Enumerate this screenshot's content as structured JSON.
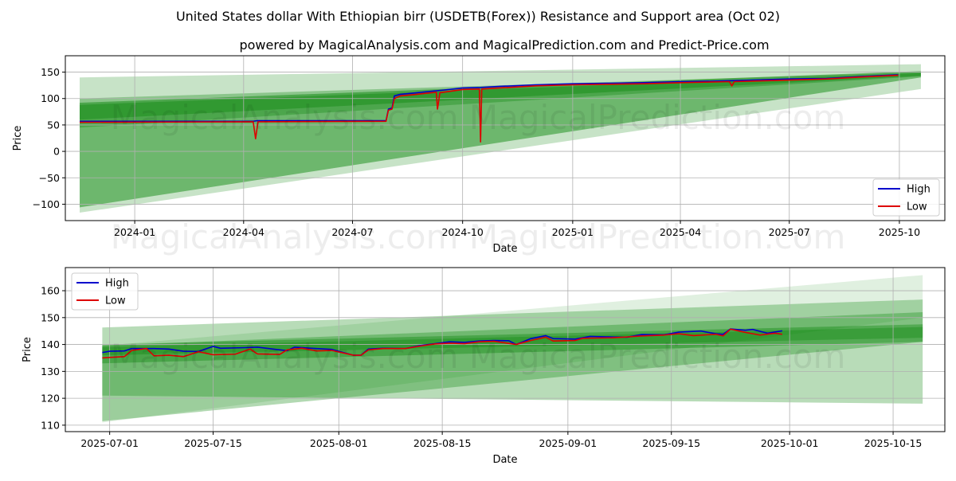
{
  "title": "United States dollar With Ethiopian birr (USDETB(Forex)) Resistance and Support area (Oct 02)",
  "subtitle": "powered by MagicalAnalysis.com and MagicalPrediction.com and Predict-Price.com",
  "watermark": "MagicalAnalysis.com    MagicalPrediction.com",
  "colors": {
    "high": "#0000cc",
    "low": "#dd0000",
    "band": "#008000"
  },
  "chart_data": [
    {
      "type": "line",
      "xlabel": "Date",
      "ylabel": "Price",
      "xlim": [
        "2023-11-04",
        "2025-11-08"
      ],
      "ylim": [
        -131,
        181
      ],
      "yticks": [
        -100,
        -50,
        0,
        50,
        100,
        150
      ],
      "xticks": [
        "2024-01",
        "2024-04",
        "2024-07",
        "2024-10",
        "2025-01",
        "2025-04",
        "2025-07",
        "2025-10"
      ],
      "grid": true,
      "legend": "bottom-right",
      "bands": [
        {
          "name": "light-band",
          "opacity": 0.22,
          "x": [
            "2023-11-16",
            "2025-10-19"
          ],
          "upper": [
            140,
            165
          ],
          "lower": [
            -116,
            118
          ]
        },
        {
          "name": "wide-support-band",
          "opacity": 0.45,
          "x": [
            "2023-11-16",
            "2025-10-19"
          ],
          "upper": [
            92,
            152
          ],
          "lower": [
            -106,
            140
          ]
        },
        {
          "name": "resistance-band",
          "opacity": 0.3,
          "x": [
            "2023-11-16",
            "2025-10-19"
          ],
          "upper": [
            100,
            150
          ],
          "lower": [
            45,
            142
          ]
        },
        {
          "name": "core-band",
          "opacity": 0.35,
          "x": [
            "2023-11-16",
            "2025-10-19"
          ],
          "upper": [
            88,
            148
          ],
          "lower": [
            60,
            143
          ]
        }
      ],
      "series": [
        {
          "name": "High",
          "points": [
            [
              "2023-11-16",
              57
            ],
            [
              "2024-04-09",
              57
            ],
            [
              "2024-04-12",
              58
            ],
            [
              "2024-07-29",
              58
            ],
            [
              "2024-07-31",
              80
            ],
            [
              "2024-08-03",
              82
            ],
            [
              "2024-08-05",
              105
            ],
            [
              "2024-08-10",
              108
            ],
            [
              "2024-08-20",
              110
            ],
            [
              "2024-09-01",
              113
            ],
            [
              "2024-09-15",
              116
            ],
            [
              "2024-10-01",
              120
            ],
            [
              "2024-10-16",
              121
            ],
            [
              "2024-11-01",
              123
            ],
            [
              "2024-12-01",
              126
            ],
            [
              "2025-01-01",
              128
            ],
            [
              "2025-02-01",
              129
            ],
            [
              "2025-03-01",
              130
            ],
            [
              "2025-04-01",
              132
            ],
            [
              "2025-05-01",
              133
            ],
            [
              "2025-06-01",
              135
            ],
            [
              "2025-07-01",
              137
            ],
            [
              "2025-08-01",
              138
            ],
            [
              "2025-09-01",
              142
            ],
            [
              "2025-09-30",
              145
            ]
          ]
        },
        {
          "name": "Low",
          "points": [
            [
              "2023-11-16",
              55
            ],
            [
              "2024-04-09",
              56
            ],
            [
              "2024-04-11",
              24
            ],
            [
              "2024-04-13",
              56
            ],
            [
              "2024-07-29",
              57
            ],
            [
              "2024-07-31",
              78
            ],
            [
              "2024-08-03",
              80
            ],
            [
              "2024-08-05",
              100
            ],
            [
              "2024-08-10",
              105
            ],
            [
              "2024-08-20",
              107
            ],
            [
              "2024-09-01",
              110
            ],
            [
              "2024-09-09",
              112
            ],
            [
              "2024-09-10",
              80
            ],
            [
              "2024-09-12",
              111
            ],
            [
              "2024-10-01",
              117
            ],
            [
              "2024-10-15",
              118
            ],
            [
              "2024-10-16",
              18
            ],
            [
              "2024-10-17",
              118
            ],
            [
              "2024-11-01",
              120
            ],
            [
              "2024-12-01",
              124
            ],
            [
              "2025-01-01",
              126
            ],
            [
              "2025-02-01",
              127
            ],
            [
              "2025-03-01",
              128
            ],
            [
              "2025-04-01",
              130
            ],
            [
              "2025-05-12",
              132
            ],
            [
              "2025-05-14",
              124
            ],
            [
              "2025-05-16",
              132
            ],
            [
              "2025-06-01",
              133
            ],
            [
              "2025-07-01",
              135
            ],
            [
              "2025-08-01",
              137
            ],
            [
              "2025-09-01",
              141
            ],
            [
              "2025-09-30",
              144
            ]
          ]
        }
      ]
    },
    {
      "type": "line",
      "xlabel": "Date",
      "ylabel": "Price",
      "xlim": [
        "2025-06-25",
        "2025-10-22"
      ],
      "ylim": [
        107.6,
        168.6
      ],
      "yticks": [
        110,
        120,
        130,
        140,
        150,
        160
      ],
      "xticks": [
        "2025-07-01",
        "2025-07-15",
        "2025-08-01",
        "2025-08-15",
        "2025-09-01",
        "2025-09-15",
        "2025-10-01",
        "2025-10-15"
      ],
      "grid": true,
      "legend": "top-left",
      "bands": [
        {
          "name": "light-rising-band",
          "opacity": 0.12,
          "x": [
            "2025-06-30",
            "2025-10-19"
          ],
          "upper": [
            139.5,
            165.8
          ],
          "lower": [
            111,
            150
          ]
        },
        {
          "name": "upper-flat-band",
          "opacity": 0.28,
          "x": [
            "2025-06-30",
            "2025-10-19"
          ],
          "upper": [
            146.3,
            156.7
          ],
          "lower": [
            121,
            118
          ]
        },
        {
          "name": "rising-support-band",
          "opacity": 0.3,
          "x": [
            "2025-06-30",
            "2025-10-19"
          ],
          "upper": [
            139.5,
            152
          ],
          "lower": [
            111.5,
            141
          ]
        },
        {
          "name": "core-band",
          "opacity": 0.35,
          "x": [
            "2025-06-30",
            "2025-10-19"
          ],
          "upper": [
            140,
            147.5
          ],
          "lower": [
            133,
            141
          ]
        },
        {
          "name": "inner-core-band",
          "opacity": 0.3,
          "x": [
            "2025-06-30",
            "2025-10-19"
          ],
          "upper": [
            139,
            146.5
          ],
          "lower": [
            136,
            142.5
          ]
        }
      ],
      "series": [
        {
          "name": "High",
          "points": [
            [
              "2025-06-30",
              137
            ],
            [
              "2025-07-01",
              137.5
            ],
            [
              "2025-07-03",
              137.6
            ],
            [
              "2025-07-04",
              138.5
            ],
            [
              "2025-07-07",
              138.5
            ],
            [
              "2025-07-09",
              138.3
            ],
            [
              "2025-07-11",
              137.5
            ],
            [
              "2025-07-13",
              137.4
            ],
            [
              "2025-07-15",
              139.3
            ],
            [
              "2025-07-16",
              138.6
            ],
            [
              "2025-07-19",
              138.8
            ],
            [
              "2025-07-21",
              139
            ],
            [
              "2025-07-24",
              138
            ],
            [
              "2025-07-25",
              137.7
            ],
            [
              "2025-07-26",
              139
            ],
            [
              "2025-07-29",
              138.5
            ],
            [
              "2025-07-31",
              138.2
            ],
            [
              "2025-08-03",
              136
            ],
            [
              "2025-08-04",
              136
            ],
            [
              "2025-08-05",
              138.3
            ],
            [
              "2025-08-07",
              138.6
            ],
            [
              "2025-08-10",
              138.5
            ],
            [
              "2025-08-12",
              139.6
            ],
            [
              "2025-08-14",
              140.3
            ],
            [
              "2025-08-16",
              141
            ],
            [
              "2025-08-18",
              140.8
            ],
            [
              "2025-08-20",
              141.3
            ],
            [
              "2025-08-22",
              141.5
            ],
            [
              "2025-08-24",
              141.4
            ],
            [
              "2025-08-25",
              140
            ],
            [
              "2025-08-27",
              142.2
            ],
            [
              "2025-08-29",
              143.3
            ],
            [
              "2025-08-30",
              142.2
            ],
            [
              "2025-09-02",
              142
            ],
            [
              "2025-09-04",
              143
            ],
            [
              "2025-09-07",
              142.8
            ],
            [
              "2025-09-09",
              142.7
            ],
            [
              "2025-09-11",
              143.7
            ],
            [
              "2025-09-14",
              143.6
            ],
            [
              "2025-09-16",
              144.6
            ],
            [
              "2025-09-19",
              145
            ],
            [
              "2025-09-21",
              144
            ],
            [
              "2025-09-22",
              143.8
            ],
            [
              "2025-09-23",
              145.8
            ],
            [
              "2025-09-25",
              145.3
            ],
            [
              "2025-09-26",
              145.6
            ],
            [
              "2025-09-28",
              144.2
            ],
            [
              "2025-09-30",
              145.1
            ]
          ]
        },
        {
          "name": "Low",
          "points": [
            [
              "2025-06-30",
              135
            ],
            [
              "2025-07-01",
              135.2
            ],
            [
              "2025-07-03",
              135.5
            ],
            [
              "2025-07-04",
              137.8
            ],
            [
              "2025-07-06",
              138.5
            ],
            [
              "2025-07-07",
              135.8
            ],
            [
              "2025-07-09",
              136
            ],
            [
              "2025-07-11",
              135.5
            ],
            [
              "2025-07-13",
              137.3
            ],
            [
              "2025-07-15",
              136.2
            ],
            [
              "2025-07-18",
              136.4
            ],
            [
              "2025-07-20",
              138.3
            ],
            [
              "2025-07-21",
              136.5
            ],
            [
              "2025-07-24",
              136.3
            ],
            [
              "2025-07-25",
              138
            ],
            [
              "2025-07-27",
              138.6
            ],
            [
              "2025-07-29",
              137.6
            ],
            [
              "2025-07-31",
              137.8
            ],
            [
              "2025-08-03",
              136
            ],
            [
              "2025-08-04",
              136
            ],
            [
              "2025-08-05",
              138
            ],
            [
              "2025-08-07",
              138.5
            ],
            [
              "2025-08-10",
              138.5
            ],
            [
              "2025-08-12",
              139.4
            ],
            [
              "2025-08-14",
              140.2
            ],
            [
              "2025-08-16",
              140.5
            ],
            [
              "2025-08-18",
              140.3
            ],
            [
              "2025-08-20",
              141
            ],
            [
              "2025-08-22",
              141.2
            ],
            [
              "2025-08-25",
              140
            ],
            [
              "2025-08-27",
              141.5
            ],
            [
              "2025-08-29",
              142.7
            ],
            [
              "2025-08-30",
              141.3
            ],
            [
              "2025-09-02",
              141.5
            ],
            [
              "2025-09-03",
              142.3
            ],
            [
              "2025-09-07",
              142.5
            ],
            [
              "2025-09-09",
              142.8
            ],
            [
              "2025-09-11",
              143.2
            ],
            [
              "2025-09-14",
              143.5
            ],
            [
              "2025-09-16",
              144
            ],
            [
              "2025-09-18",
              143.3
            ],
            [
              "2025-09-21",
              143.8
            ],
            [
              "2025-09-22",
              143.2
            ],
            [
              "2025-09-23",
              145.7
            ],
            [
              "2025-09-25",
              144.5
            ],
            [
              "2025-09-27",
              143.5
            ],
            [
              "2025-09-29",
              144.2
            ],
            [
              "2025-09-30",
              143.8
            ]
          ]
        }
      ]
    }
  ]
}
